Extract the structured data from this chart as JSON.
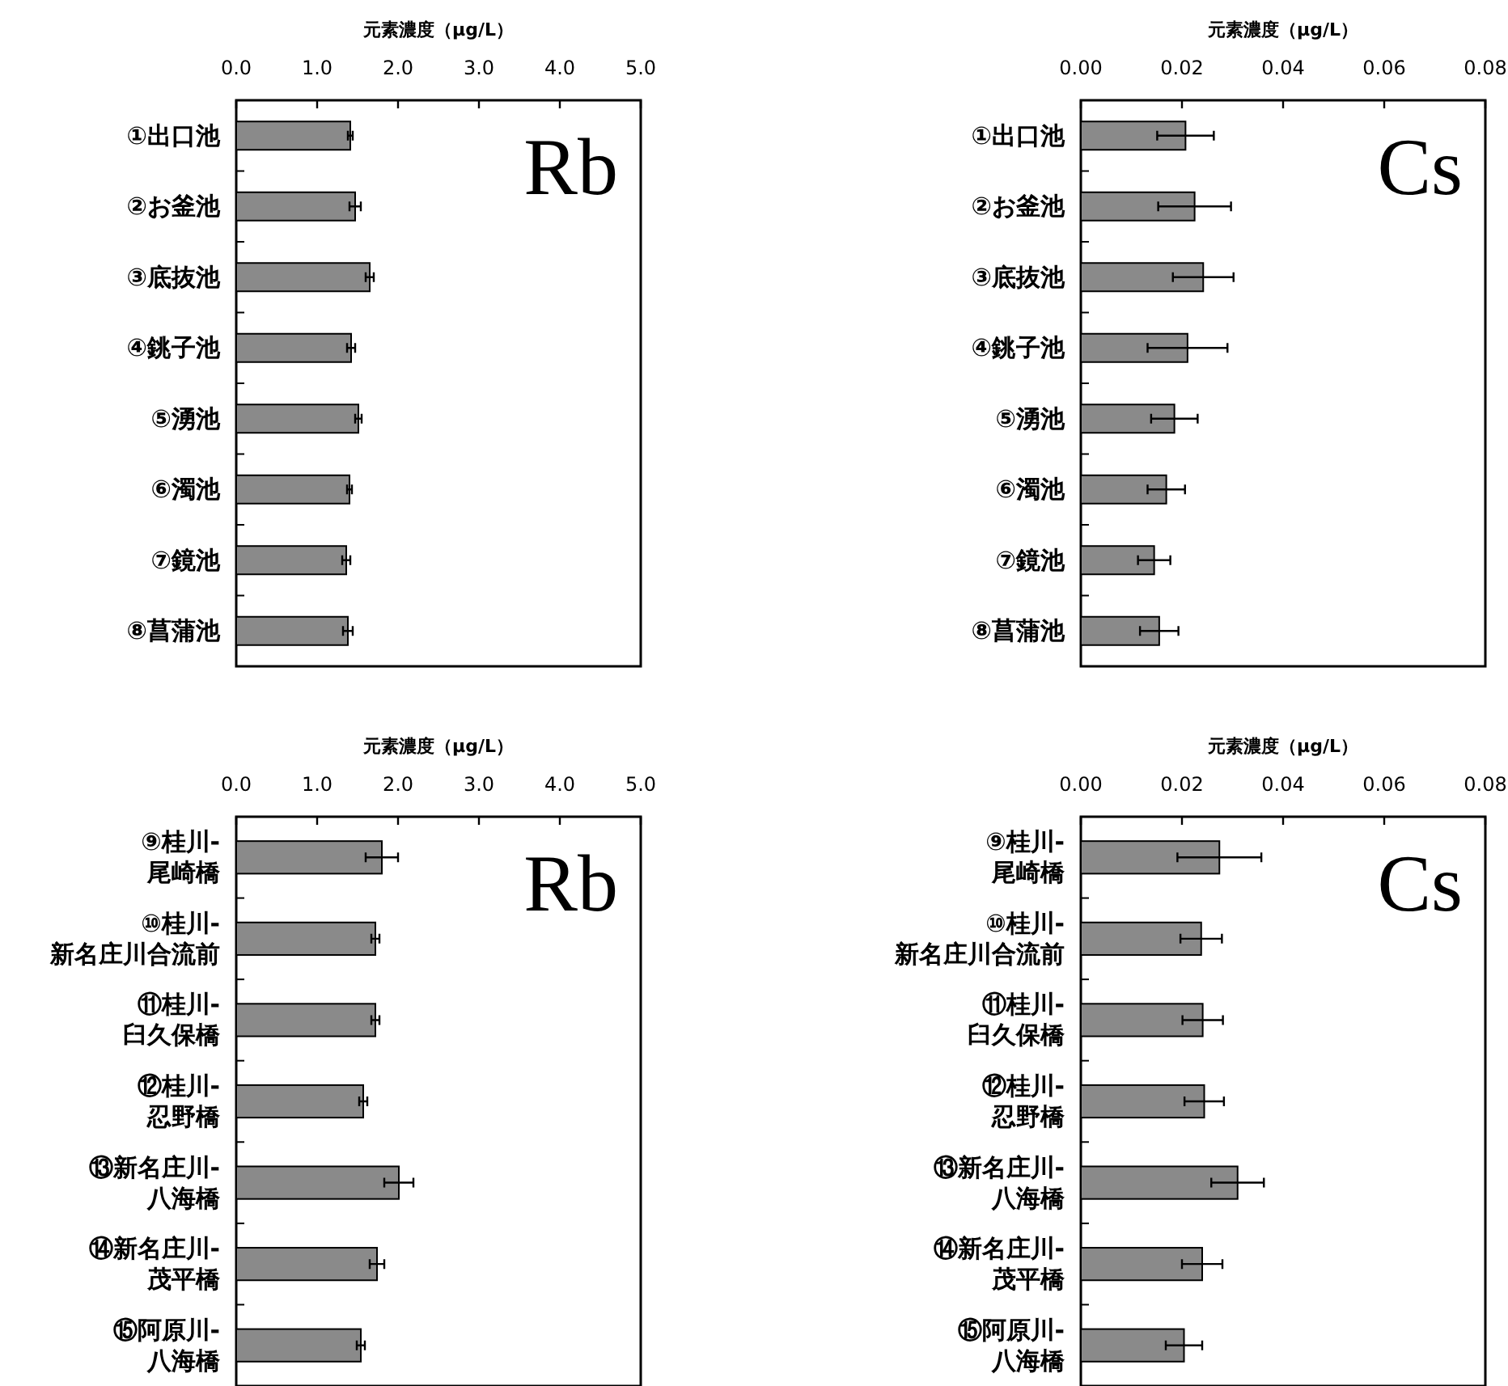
{
  "chart_data": [
    {
      "type": "bar",
      "orientation": "horizontal",
      "xlabel": "元素濃度（μg/L）",
      "annotations": [
        "Rb"
      ],
      "color": "#8a8a8a",
      "categories": [
        "①出口池",
        "②お釜池",
        "③底抜池",
        "④銚子池",
        "⑤湧池",
        "⑥濁池",
        "⑦鏡池",
        "⑧菖蒲池"
      ],
      "values": [
        1.41,
        1.47,
        1.65,
        1.42,
        1.51,
        1.4,
        1.36,
        1.38
      ],
      "errors": [
        0.03,
        0.07,
        0.05,
        0.05,
        0.04,
        0.03,
        0.05,
        0.06
      ],
      "xlim": [
        0,
        5
      ],
      "xticks": [
        {
          "value": 0,
          "label": "0.0"
        },
        {
          "value": 1,
          "label": "1.0"
        },
        {
          "value": 2,
          "label": "2.0"
        },
        {
          "value": 3,
          "label": "3.0"
        },
        {
          "value": 4,
          "label": "4.0"
        },
        {
          "value": 5,
          "label": "5.0"
        }
      ]
    },
    {
      "type": "bar",
      "orientation": "horizontal",
      "xlabel": "元素濃度（μg/L）",
      "annotations": [
        "Cs"
      ],
      "color": "#8a8a8a",
      "categories": [
        "①出口池",
        "②お釜池",
        "③底抜池",
        "④銚子池",
        "⑤湧池",
        "⑥濁池",
        "⑦鏡池",
        "⑧菖蒲池"
      ],
      "values": [
        0.0207,
        0.0225,
        0.0242,
        0.0211,
        0.0185,
        0.0169,
        0.0145,
        0.0155
      ],
      "errors": [
        0.0056,
        0.0072,
        0.006,
        0.0079,
        0.0046,
        0.0037,
        0.0032,
        0.0038
      ],
      "xlim": [
        0,
        0.08
      ],
      "xticks": [
        {
          "value": 0,
          "label": "0.00"
        },
        {
          "value": 0.02,
          "label": "0.02"
        },
        {
          "value": 0.04,
          "label": "0.04"
        },
        {
          "value": 0.06,
          "label": "0.06"
        },
        {
          "value": 0.08,
          "label": "0.08"
        }
      ]
    },
    {
      "type": "bar",
      "orientation": "horizontal",
      "xlabel": "元素濃度（μg/L）",
      "annotations": [
        "Rb"
      ],
      "color": "#8a8a8a",
      "categories": [
        "⑨桂川-\n尾崎橋",
        "⑩桂川-\n新名庄川合流前",
        "⑪桂川-\n臼久保橋",
        "⑫桂川-\n忍野橋",
        "⑬新名庄川-\n八海橋",
        "⑭新名庄川-\n茂平橋",
        "⑮阿原川-\n八海橋"
      ],
      "values": [
        1.8,
        1.72,
        1.72,
        1.57,
        2.01,
        1.74,
        1.54
      ],
      "errors": [
        0.2,
        0.05,
        0.05,
        0.05,
        0.18,
        0.09,
        0.05
      ],
      "xlim": [
        0,
        5
      ],
      "xticks": [
        {
          "value": 0,
          "label": "0.0"
        },
        {
          "value": 1,
          "label": "1.0"
        },
        {
          "value": 2,
          "label": "2.0"
        },
        {
          "value": 3,
          "label": "3.0"
        },
        {
          "value": 4,
          "label": "4.0"
        },
        {
          "value": 5,
          "label": "5.0"
        }
      ]
    },
    {
      "type": "bar",
      "orientation": "horizontal",
      "xlabel": "元素濃度（μg/L）",
      "annotations": [
        "Cs"
      ],
      "color": "#8a8a8a",
      "categories": [
        "⑨桂川-\n尾崎橋",
        "⑩桂川-\n新名庄川合流前",
        "⑪桂川-\n臼久保橋",
        "⑫桂川-\n忍野橋",
        "⑬新名庄川-\n八海橋",
        "⑭新名庄川-\n茂平橋",
        "⑮阿原川-\n八海橋"
      ],
      "values": [
        0.0274,
        0.0238,
        0.0241,
        0.0244,
        0.031,
        0.024,
        0.0204
      ],
      "errors": [
        0.0083,
        0.0041,
        0.004,
        0.0039,
        0.0052,
        0.004,
        0.0036
      ],
      "xlim": [
        0,
        0.08
      ],
      "xticks": [
        {
          "value": 0,
          "label": "0.00"
        },
        {
          "value": 0.02,
          "label": "0.02"
        },
        {
          "value": 0.04,
          "label": "0.04"
        },
        {
          "value": 0.06,
          "label": "0.06"
        },
        {
          "value": 0.08,
          "label": "0.08"
        }
      ]
    }
  ]
}
